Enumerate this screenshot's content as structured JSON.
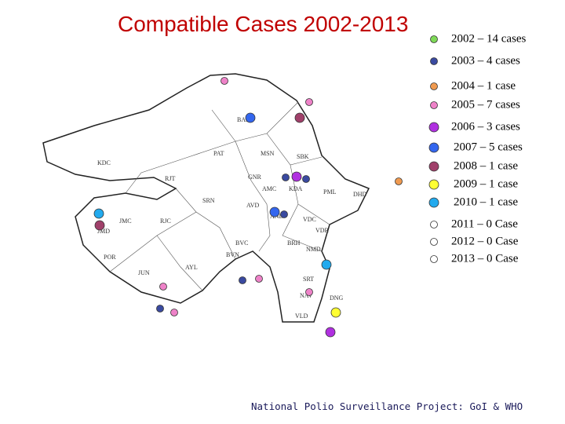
{
  "title": "Compatible Cases 2002-2013",
  "legend": {
    "items": [
      {
        "label": "2002 – 14 cases"
      },
      {
        "label": "2003 –  4 cases"
      },
      {
        "label": "2004 –  1 case"
      },
      {
        "label": "2005 –  7 cases"
      },
      {
        "label": "2006 –  3 cases"
      },
      {
        "label": "2007 – 5 cases"
      },
      {
        "label": "2008 – 1 case"
      },
      {
        "label": "2009 – 1 case"
      },
      {
        "label": "2010 – 1 case"
      },
      {
        "label": "2011 – 0 Case"
      },
      {
        "label": "2012 – 0 Case"
      },
      {
        "label": "2013 – 0 Case"
      }
    ]
  },
  "map": {
    "districts": [
      "BAN",
      "PAT",
      "MSN",
      "SBK",
      "KDC",
      "GNR",
      "AMC",
      "KDA",
      "PML",
      "DHD",
      "RJT",
      "SRN",
      "AVD",
      "JMC",
      "RJC",
      "AND",
      "VDC",
      "VDR",
      "JMD",
      "BVC",
      "BRH",
      "POR",
      "BVN",
      "NMD",
      "JUN",
      "AYL",
      "SRT",
      "NAV",
      "VLD",
      "DNG"
    ]
  },
  "footer": "National Polio Surveillance Project: GoI & WHO"
}
